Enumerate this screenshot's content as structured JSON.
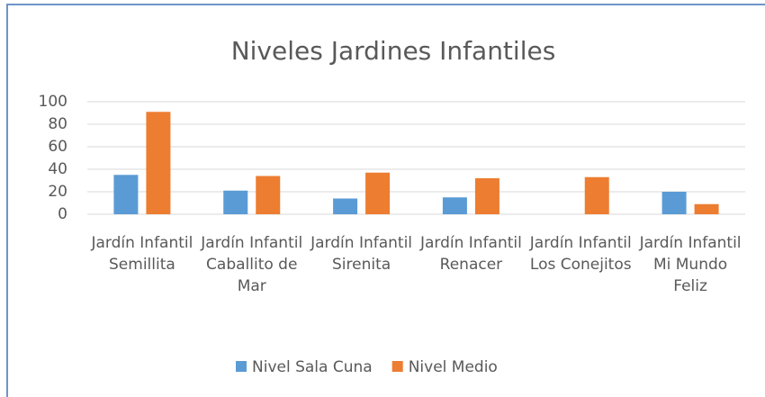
{
  "chart_data": {
    "type": "bar",
    "title": "Niveles Jardines Infantiles",
    "categories": [
      "Jardín Infantil Semillita",
      "Jardín Infantil Caballito de Mar",
      "Jardín Infantil Sirenita",
      "Jardín Infantil Renacer",
      "Jardín Infantil Los Conejitos",
      "Jardín Infantil Mi Mundo Feliz"
    ],
    "series": [
      {
        "name": "Nivel Sala Cuna",
        "color": "#5b9bd5",
        "values": [
          35,
          21,
          14,
          15,
          0,
          20
        ]
      },
      {
        "name": "Nivel Medio",
        "color": "#ed7d31",
        "values": [
          91,
          34,
          37,
          32,
          33,
          9
        ]
      }
    ],
    "ylim": [
      0,
      100
    ],
    "yticks": [
      0,
      20,
      40,
      60,
      80,
      100
    ],
    "grid": true,
    "legend": "bottom"
  }
}
